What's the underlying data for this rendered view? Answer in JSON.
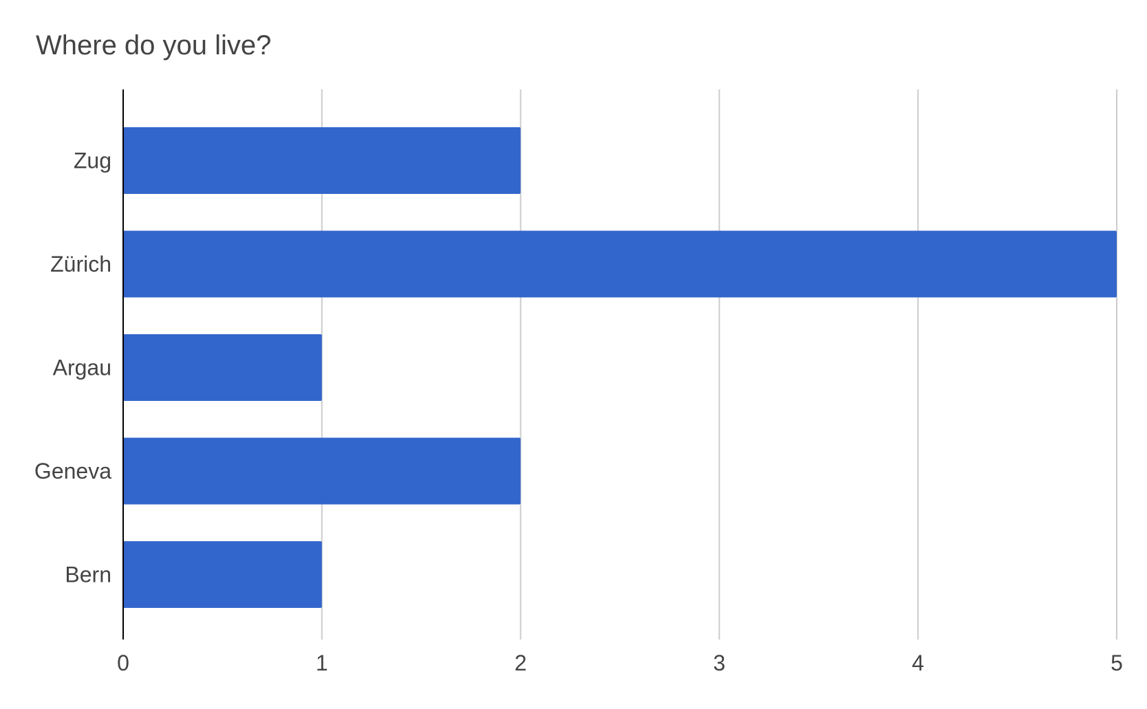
{
  "chart_data": {
    "type": "bar",
    "orientation": "horizontal",
    "title": "Where do you live?",
    "xlabel": "",
    "ylabel": "",
    "categories": [
      "Zug",
      "Zürich",
      "Argau",
      "Geneva",
      "Bern"
    ],
    "values": [
      2,
      5,
      1,
      2,
      1
    ],
    "xlim": [
      0,
      5
    ],
    "x_ticks": [
      "0",
      "1",
      "2",
      "3",
      "4",
      "5"
    ],
    "grid": true,
    "legend": "none",
    "bar_color": "#3366cc",
    "grid_color": "#cccccc",
    "axis_color": "#000000",
    "label_color": "#444444"
  }
}
